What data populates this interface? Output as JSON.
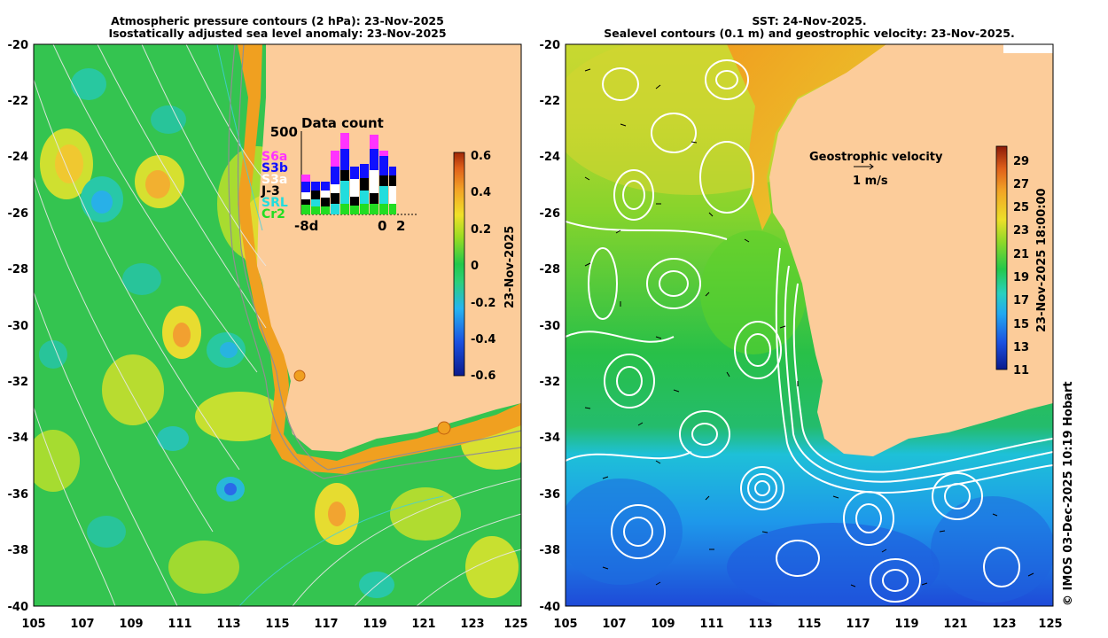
{
  "left_panel": {
    "title_line1": "Atmospheric pressure contours (2 hPa): 23-Nov-2025",
    "title_line2": "Isostatically adjusted sea level anomaly: 23-Nov-2025",
    "lat_ticks": [
      "-20",
      "-22",
      "-24",
      "-26",
      "-28",
      "-30",
      "-32",
      "-34",
      "-36",
      "-38",
      "-40"
    ],
    "lon_ticks": [
      "105",
      "107",
      "109",
      "111",
      "113",
      "115",
      "117",
      "119",
      "121",
      "123",
      "125"
    ],
    "colorbar": {
      "label": "23-Nov-2025",
      "ticks": [
        "0.6",
        "0.4",
        "0.2",
        "0",
        "-0.2",
        "-0.4",
        "-0.6"
      ],
      "range": [
        -0.6,
        0.6
      ]
    },
    "data_count": {
      "title": "Data count",
      "ymax": "500",
      "xlabels": [
        "-8d",
        "0",
        "2"
      ],
      "satellites": [
        {
          "name": "S6a",
          "color": "#ff33ff"
        },
        {
          "name": "S3b",
          "color": "#1010ff"
        },
        {
          "name": "S3a",
          "color": "#ffffff"
        },
        {
          "name": "J-3",
          "color": "#000000"
        },
        {
          "name": "SRL",
          "color": "#22dddd"
        },
        {
          "name": "Cr2",
          "color": "#22dd22"
        }
      ]
    }
  },
  "right_panel": {
    "title_line1": "SST: 24-Nov-2025.",
    "title_line2": "Sealevel contours (0.1 m) and geostrophic velocity: 23-Nov-2025.",
    "lat_ticks": [
      "-20",
      "-22",
      "-24",
      "-26",
      "-28",
      "-30",
      "-32",
      "-34",
      "-36",
      "-38",
      "-40"
    ],
    "lon_ticks": [
      "105",
      "107",
      "109",
      "111",
      "113",
      "115",
      "117",
      "119",
      "121",
      "123",
      "125"
    ],
    "velocity_label": "Geostrophic velocity",
    "velocity_scale": "1 m/s",
    "colorbar": {
      "label": "23-Nov-2025 18:00:00",
      "ticks": [
        "29",
        "27",
        "25",
        "23",
        "21",
        "19",
        "17",
        "15",
        "13",
        "11"
      ],
      "range": [
        11,
        30
      ]
    }
  },
  "credit": "© IMOS 03-Dec-2025 10:19 Hobart"
}
